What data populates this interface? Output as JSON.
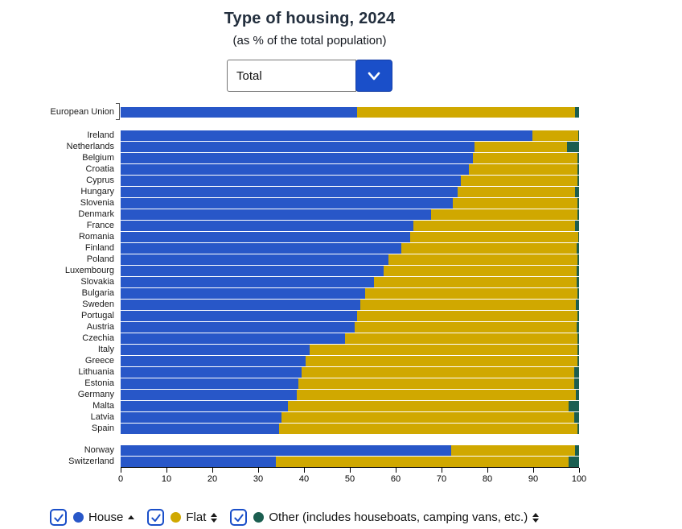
{
  "header": {
    "title": "Type of housing, 2024",
    "subtitle": "(as % of the total population)"
  },
  "filter": {
    "value": "Total"
  },
  "colors": {
    "accent": "#1a4fc9",
    "house": "#2857c8",
    "flat": "#d0a800",
    "other": "#1b5e50"
  },
  "chart_data": {
    "type": "bar",
    "orientation": "horizontal",
    "stacked": true,
    "title": "Type of housing, 2024",
    "subtitle": "(as % of the total population)",
    "unit": "% of total population",
    "xlim": [
      0,
      100
    ],
    "x_ticks": [
      0,
      10,
      20,
      30,
      40,
      50,
      60,
      70,
      80,
      90,
      100
    ],
    "series": [
      {
        "name": "House",
        "color": "#2857c8"
      },
      {
        "name": "Flat",
        "color": "#d0a800"
      },
      {
        "name": "Other",
        "color": "#1b5e50"
      }
    ],
    "groups": [
      {
        "rows": [
          {
            "label": "European Union",
            "values": [
              51.6,
              47.5,
              0.9
            ]
          }
        ]
      },
      {
        "rows": [
          {
            "label": "Ireland",
            "values": [
              89.9,
              9.9,
              0.2
            ]
          },
          {
            "label": "Netherlands",
            "values": [
              77.2,
              20.2,
              2.6
            ]
          },
          {
            "label": "Belgium",
            "values": [
              76.9,
              22.7,
              0.4
            ]
          },
          {
            "label": "Croatia",
            "values": [
              76.0,
              23.6,
              0.4
            ]
          },
          {
            "label": "Cyprus",
            "values": [
              74.2,
              25.5,
              0.3
            ]
          },
          {
            "label": "Hungary",
            "values": [
              73.5,
              25.7,
              0.8
            ]
          },
          {
            "label": "Slovenia",
            "values": [
              72.4,
              27.2,
              0.4
            ]
          },
          {
            "label": "Denmark",
            "values": [
              67.8,
              31.8,
              0.4
            ]
          },
          {
            "label": "France",
            "values": [
              63.9,
              35.3,
              0.8
            ]
          },
          {
            "label": "Romania",
            "values": [
              63.2,
              36.6,
              0.2
            ]
          },
          {
            "label": "Finland",
            "values": [
              61.2,
              38.2,
              0.6
            ]
          },
          {
            "label": "Poland",
            "values": [
              58.4,
              41.3,
              0.3
            ]
          },
          {
            "label": "Luxembourg",
            "values": [
              57.3,
              42.1,
              0.6
            ]
          },
          {
            "label": "Slovakia",
            "values": [
              55.2,
              44.2,
              0.6
            ]
          },
          {
            "label": "Bulgaria",
            "values": [
              53.4,
              46.3,
              0.3
            ]
          },
          {
            "label": "Sweden",
            "values": [
              52.3,
              47.0,
              0.7
            ]
          },
          {
            "label": "Portugal",
            "values": [
              51.6,
              48.0,
              0.4
            ]
          },
          {
            "label": "Austria",
            "values": [
              51.1,
              48.3,
              0.6
            ]
          },
          {
            "label": "Czechia",
            "values": [
              48.9,
              50.7,
              0.4
            ]
          },
          {
            "label": "Italy",
            "values": [
              41.3,
              58.4,
              0.3
            ]
          },
          {
            "label": "Greece",
            "values": [
              40.4,
              59.3,
              0.3
            ]
          },
          {
            "label": "Lithuania",
            "values": [
              39.5,
              59.4,
              1.1
            ]
          },
          {
            "label": "Estonia",
            "values": [
              38.8,
              60.1,
              1.1
            ]
          },
          {
            "label": "Germany",
            "values": [
              38.4,
              60.9,
              0.7
            ]
          },
          {
            "label": "Malta",
            "values": [
              36.5,
              61.3,
              2.2
            ]
          },
          {
            "label": "Latvia",
            "values": [
              35.1,
              63.8,
              1.1
            ]
          },
          {
            "label": "Spain",
            "values": [
              34.5,
              65.1,
              0.4
            ]
          }
        ]
      },
      {
        "rows": [
          {
            "label": "Norway",
            "values": [
              72.1,
              27.0,
              0.9
            ]
          },
          {
            "label": "Switzerland",
            "values": [
              33.8,
              63.9,
              2.3
            ]
          }
        ]
      }
    ]
  },
  "legend": {
    "items": [
      {
        "label": "House",
        "checked": true,
        "sort": "asc"
      },
      {
        "label": "Flat",
        "checked": true,
        "sort": "both"
      },
      {
        "label": "Other (includes houseboats, camping vans, etc.)",
        "checked": true,
        "sort": "both"
      }
    ]
  }
}
